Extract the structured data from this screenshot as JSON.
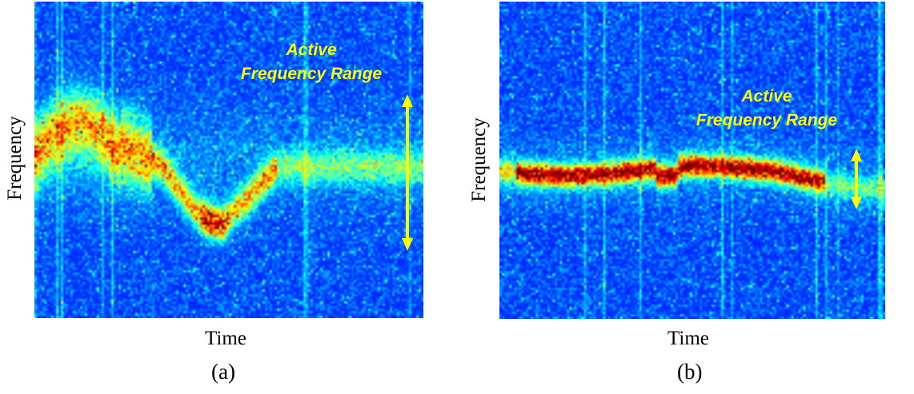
{
  "chart_data": [
    {
      "type": "heatmap",
      "id": "a",
      "caption": "(a)",
      "xlabel": "Time",
      "ylabel": "Frequency",
      "annotation": {
        "line1": "Active",
        "line2": "Frequency Range"
      },
      "colors": {
        "background": "#0a1da8",
        "arrow": "#ffff00"
      }
    },
    {
      "type": "heatmap",
      "id": "b",
      "caption": "(b)",
      "xlabel": "Time",
      "ylabel": "Frequency",
      "annotation": {
        "line1": "Active",
        "line2": "Frequency Range"
      },
      "colors": {
        "background": "#0a1da8",
        "arrow": "#ffff00"
      }
    }
  ]
}
